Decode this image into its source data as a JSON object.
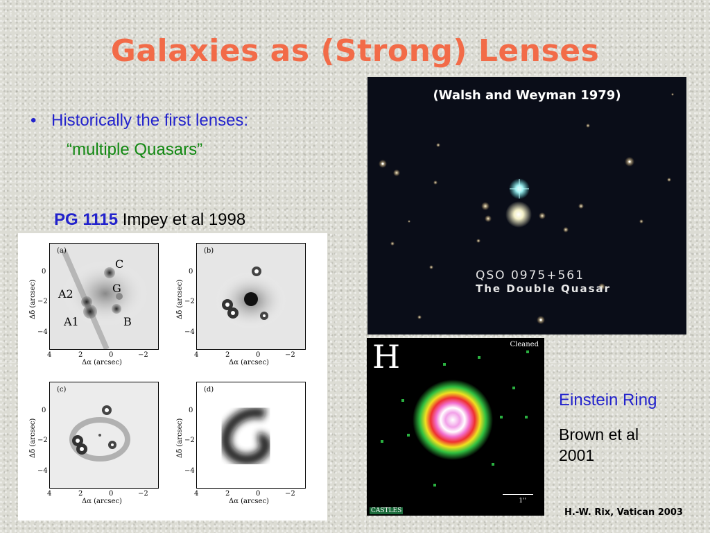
{
  "slide": {
    "title": "Galaxies as (Strong) Lenses",
    "bullet_marker": "•",
    "bullet_text": "Historically the first lenses:",
    "sub_text": "“multiple Quasars”",
    "pg_name": "PG 1115",
    "pg_ref": "Impey et al 1998",
    "colors": {
      "title": "#f26b48",
      "blue": "#2222cc",
      "green": "#118811"
    }
  },
  "quasar_image": {
    "caption": "(Walsh and Weyman 1979)",
    "label_line1": "QSO 0975+561",
    "label_line2": "The Double Quasar"
  },
  "panels": {
    "a": {
      "label": "(a)",
      "components": [
        "C",
        "G",
        "A2",
        "A1",
        "B"
      ]
    },
    "b": {
      "label": "(b)"
    },
    "c": {
      "label": "(c)"
    },
    "d": {
      "label": "(d)"
    },
    "ylabel": "Δδ (arcsec)",
    "xlabel": "Δα (arcsec)",
    "yticks": [
      "0",
      "−2",
      "−4"
    ],
    "xticks": [
      "4",
      "2",
      "0",
      "−2"
    ]
  },
  "ring_image": {
    "band": "H",
    "status": "Cleaned",
    "source": "CASTLES",
    "scale": "1''"
  },
  "einstein": {
    "title": "Einstein Ring",
    "ref": "Brown et al 2001"
  },
  "footer": {
    "credit": "H.-W. Rix, Vatican 2003"
  }
}
